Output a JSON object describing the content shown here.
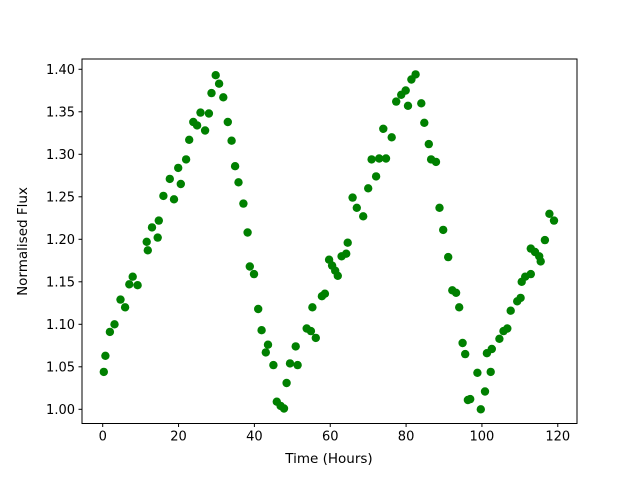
{
  "figure": {
    "background": "#ffffff",
    "border_color": "#000000"
  },
  "chart_data": {
    "type": "scatter",
    "title": "",
    "xlabel": "Time (Hours)",
    "ylabel": "Normalised Flux",
    "marker_color": "#008000",
    "marker_shape": "circle",
    "grid": false,
    "legend": null,
    "xlim": [
      -5.46,
      125.07
    ],
    "ylim": [
      0.9833,
      1.4121
    ],
    "xticks": [
      0,
      20,
      40,
      60,
      80,
      100,
      120
    ],
    "xtick_labels": [
      "0",
      "20",
      "40",
      "60",
      "80",
      "100",
      "120"
    ],
    "yticks": [
      1.0,
      1.05,
      1.1,
      1.15,
      1.2,
      1.25,
      1.3,
      1.35,
      1.4
    ],
    "ytick_labels": [
      "1.00",
      "1.05",
      "1.10",
      "1.15",
      "1.20",
      "1.25",
      "1.30",
      "1.35",
      "1.40"
    ],
    "series": [
      {
        "name": "normalised-flux",
        "points": [
          [
            0.3,
            1.044
          ],
          [
            0.7,
            1.063
          ],
          [
            1.9,
            1.091
          ],
          [
            3.1,
            1.1
          ],
          [
            4.7,
            1.129
          ],
          [
            5.9,
            1.12
          ],
          [
            7.0,
            1.147
          ],
          [
            7.9,
            1.156
          ],
          [
            9.2,
            1.146
          ],
          [
            11.6,
            1.197
          ],
          [
            11.9,
            1.187
          ],
          [
            13.0,
            1.214
          ],
          [
            14.5,
            1.202
          ],
          [
            14.8,
            1.222
          ],
          [
            16.0,
            1.251
          ],
          [
            17.7,
            1.271
          ],
          [
            18.8,
            1.247
          ],
          [
            19.9,
            1.284
          ],
          [
            20.6,
            1.265
          ],
          [
            22.0,
            1.294
          ],
          [
            22.8,
            1.317
          ],
          [
            23.9,
            1.338
          ],
          [
            24.9,
            1.334
          ],
          [
            25.8,
            1.349
          ],
          [
            27.0,
            1.328
          ],
          [
            28.0,
            1.348
          ],
          [
            28.7,
            1.372
          ],
          [
            29.8,
            1.393
          ],
          [
            30.7,
            1.383
          ],
          [
            31.8,
            1.367
          ],
          [
            33.0,
            1.338
          ],
          [
            34.0,
            1.316
          ],
          [
            34.9,
            1.286
          ],
          [
            35.8,
            1.267
          ],
          [
            37.1,
            1.242
          ],
          [
            38.2,
            1.208
          ],
          [
            38.8,
            1.168
          ],
          [
            39.9,
            1.159
          ],
          [
            41.0,
            1.118
          ],
          [
            41.9,
            1.093
          ],
          [
            43.0,
            1.067
          ],
          [
            43.6,
            1.076
          ],
          [
            45.0,
            1.052
          ],
          [
            45.9,
            1.009
          ],
          [
            46.9,
            1.004
          ],
          [
            47.8,
            1.001
          ],
          [
            48.5,
            1.031
          ],
          [
            49.4,
            1.054
          ],
          [
            50.9,
            1.074
          ],
          [
            51.4,
            1.052
          ],
          [
            53.8,
            1.095
          ],
          [
            54.9,
            1.092
          ],
          [
            55.3,
            1.12
          ],
          [
            56.2,
            1.084
          ],
          [
            57.8,
            1.133
          ],
          [
            58.6,
            1.136
          ],
          [
            59.7,
            1.176
          ],
          [
            60.5,
            1.169
          ],
          [
            61.3,
            1.163
          ],
          [
            62.0,
            1.157
          ],
          [
            63.0,
            1.18
          ],
          [
            64.2,
            1.183
          ],
          [
            64.6,
            1.196
          ],
          [
            65.9,
            1.249
          ],
          [
            67.0,
            1.237
          ],
          [
            68.7,
            1.227
          ],
          [
            70.0,
            1.26
          ],
          [
            70.9,
            1.294
          ],
          [
            72.1,
            1.274
          ],
          [
            72.9,
            1.295
          ],
          [
            74.0,
            1.33
          ],
          [
            74.7,
            1.295
          ],
          [
            76.2,
            1.32
          ],
          [
            77.4,
            1.362
          ],
          [
            78.7,
            1.37
          ],
          [
            79.9,
            1.375
          ],
          [
            80.5,
            1.357
          ],
          [
            81.4,
            1.388
          ],
          [
            82.5,
            1.394
          ],
          [
            84.0,
            1.36
          ],
          [
            84.8,
            1.337
          ],
          [
            86.0,
            1.312
          ],
          [
            86.6,
            1.294
          ],
          [
            87.9,
            1.291
          ],
          [
            88.8,
            1.237
          ],
          [
            89.8,
            1.211
          ],
          [
            91.1,
            1.179
          ],
          [
            92.2,
            1.14
          ],
          [
            93.2,
            1.137
          ],
          [
            94.0,
            1.12
          ],
          [
            94.9,
            1.078
          ],
          [
            95.6,
            1.065
          ],
          [
            96.3,
            1.011
          ],
          [
            96.9,
            1.012
          ],
          [
            98.8,
            1.043
          ],
          [
            99.7,
            1.0
          ],
          [
            100.8,
            1.021
          ],
          [
            101.3,
            1.066
          ],
          [
            102.3,
            1.044
          ],
          [
            102.6,
            1.071
          ],
          [
            104.6,
            1.083
          ],
          [
            105.7,
            1.092
          ],
          [
            106.7,
            1.095
          ],
          [
            107.6,
            1.116
          ],
          [
            109.3,
            1.127
          ],
          [
            110.2,
            1.131
          ],
          [
            110.5,
            1.15
          ],
          [
            111.4,
            1.156
          ],
          [
            112.9,
            1.159
          ],
          [
            112.9,
            1.189
          ],
          [
            114.0,
            1.185
          ],
          [
            115.1,
            1.18
          ],
          [
            115.5,
            1.174
          ],
          [
            116.6,
            1.199
          ],
          [
            117.8,
            1.23
          ],
          [
            119.0,
            1.222
          ]
        ]
      }
    ]
  }
}
